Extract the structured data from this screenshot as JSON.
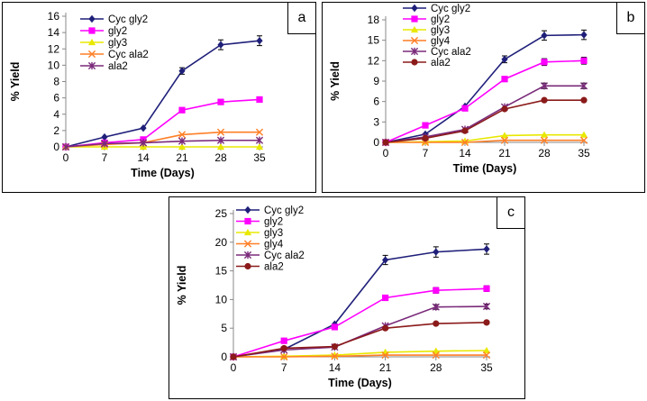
{
  "chart_data": [
    {
      "type": "line",
      "panel_label": "a",
      "xlabel": "Time (Days)",
      "ylabel": "% Yield",
      "x": [
        0,
        7,
        14,
        21,
        28,
        35
      ],
      "xlim": [
        0,
        35
      ],
      "ylim": [
        0,
        16
      ],
      "yticks": [
        0,
        2,
        4,
        6,
        8,
        10,
        12,
        14,
        16
      ],
      "series": [
        {
          "name": "Cyc gly2",
          "color": "#1F1F7A",
          "marker": "diamond",
          "values": [
            0,
            1.2,
            2.3,
            9.3,
            12.5,
            13.0
          ],
          "errors": [
            0,
            0,
            0,
            0.4,
            0.6,
            0.6
          ]
        },
        {
          "name": "gly2",
          "color": "#FF00FF",
          "marker": "square",
          "values": [
            0,
            0.5,
            0.9,
            4.5,
            5.5,
            5.8
          ],
          "errors": [
            0,
            0,
            0,
            0,
            0,
            0
          ]
        },
        {
          "name": "gly3",
          "color": "#E8E800",
          "marker": "triangle",
          "values": [
            0,
            0,
            0,
            0,
            0,
            0
          ],
          "errors": [
            0,
            0,
            0,
            0,
            0,
            0
          ]
        },
        {
          "name": "Cyc ala2",
          "color": "#FF7F27",
          "marker": "x",
          "values": [
            0,
            0.3,
            0.5,
            1.5,
            1.8,
            1.8
          ],
          "errors": [
            0,
            0,
            0,
            0,
            0,
            0
          ]
        },
        {
          "name": "ala2",
          "color": "#7A2A7A",
          "marker": "star",
          "values": [
            0,
            0.4,
            0.5,
            0.7,
            0.8,
            0.8
          ],
          "errors": [
            0,
            0,
            0,
            0,
            0,
            0
          ]
        }
      ]
    },
    {
      "type": "line",
      "panel_label": "b",
      "xlabel": "Time (Days)",
      "ylabel": "% Yield",
      "x": [
        0,
        7,
        14,
        21,
        28,
        35
      ],
      "xlim": [
        0,
        35
      ],
      "ylim": [
        0,
        18
      ],
      "yticks": [
        0,
        3,
        6,
        9,
        12,
        15,
        18
      ],
      "series": [
        {
          "name": "Cyc gly2",
          "color": "#1F1F7A",
          "marker": "diamond",
          "values": [
            0,
            1.2,
            5.3,
            12.2,
            15.7,
            15.8
          ],
          "errors": [
            0,
            0,
            0,
            0.5,
            0.7,
            0.7
          ]
        },
        {
          "name": "gly2",
          "color": "#FF00FF",
          "marker": "square",
          "values": [
            0,
            2.5,
            5.0,
            9.3,
            11.8,
            12.0
          ],
          "errors": [
            0,
            0,
            0,
            0,
            0.5,
            0.5
          ]
        },
        {
          "name": "gly3",
          "color": "#E8E800",
          "marker": "triangle",
          "values": [
            0,
            0.1,
            0.2,
            1.0,
            1.1,
            1.1
          ],
          "errors": [
            0,
            0,
            0,
            0,
            0,
            0
          ]
        },
        {
          "name": "gly4",
          "color": "#FF7F27",
          "marker": "x",
          "values": [
            0,
            0,
            0,
            0.3,
            0.3,
            0.3
          ],
          "errors": [
            0,
            0,
            0,
            0,
            0,
            0
          ]
        },
        {
          "name": "Cyc ala2",
          "color": "#7A2A7A",
          "marker": "star",
          "values": [
            0,
            0.8,
            1.9,
            5.2,
            8.3,
            8.3
          ],
          "errors": [
            0,
            0,
            0,
            0,
            0.4,
            0.4
          ]
        },
        {
          "name": "ala2",
          "color": "#8B1A1A",
          "marker": "circle",
          "values": [
            0,
            0.6,
            1.7,
            4.9,
            6.2,
            6.2
          ],
          "errors": [
            0,
            0,
            0,
            0,
            0,
            0
          ]
        }
      ]
    },
    {
      "type": "line",
      "panel_label": "c",
      "xlabel": "Time (Days)",
      "ylabel": "% Yield",
      "x": [
        0,
        7,
        14,
        21,
        28,
        35
      ],
      "xlim": [
        0,
        35
      ],
      "ylim": [
        0,
        25
      ],
      "yticks": [
        0,
        5,
        10,
        15,
        20,
        25
      ],
      "series": [
        {
          "name": "Cyc gly2",
          "color": "#1F1F7A",
          "marker": "diamond",
          "values": [
            0,
            1.3,
            5.7,
            16.9,
            18.3,
            18.8
          ],
          "errors": [
            0,
            0,
            0,
            0.8,
            0.9,
            0.9
          ]
        },
        {
          "name": "gly2",
          "color": "#FF00FF",
          "marker": "square",
          "values": [
            0,
            2.8,
            5.2,
            10.3,
            11.6,
            11.9
          ],
          "errors": [
            0,
            0,
            0,
            0,
            0.5,
            0.5
          ]
        },
        {
          "name": "gly3",
          "color": "#E8E800",
          "marker": "triangle",
          "values": [
            0,
            0.1,
            0.3,
            0.8,
            1.0,
            1.1
          ],
          "errors": [
            0,
            0,
            0,
            0,
            0,
            0
          ]
        },
        {
          "name": "gly4",
          "color": "#FF7F27",
          "marker": "x",
          "values": [
            0,
            0,
            0.1,
            0.3,
            0.3,
            0.3
          ],
          "errors": [
            0,
            0,
            0,
            0,
            0,
            0
          ]
        },
        {
          "name": "Cyc ala2",
          "color": "#7A2A7A",
          "marker": "star",
          "values": [
            0,
            1.2,
            1.7,
            5.4,
            8.7,
            8.8
          ],
          "errors": [
            0,
            0,
            0,
            0,
            0.4,
            0.4
          ]
        },
        {
          "name": "ala2",
          "color": "#8B1A1A",
          "marker": "circle",
          "values": [
            0,
            1.5,
            1.8,
            5.0,
            5.8,
            6.0
          ],
          "errors": [
            0,
            0,
            0,
            0,
            0,
            0
          ]
        }
      ]
    }
  ]
}
